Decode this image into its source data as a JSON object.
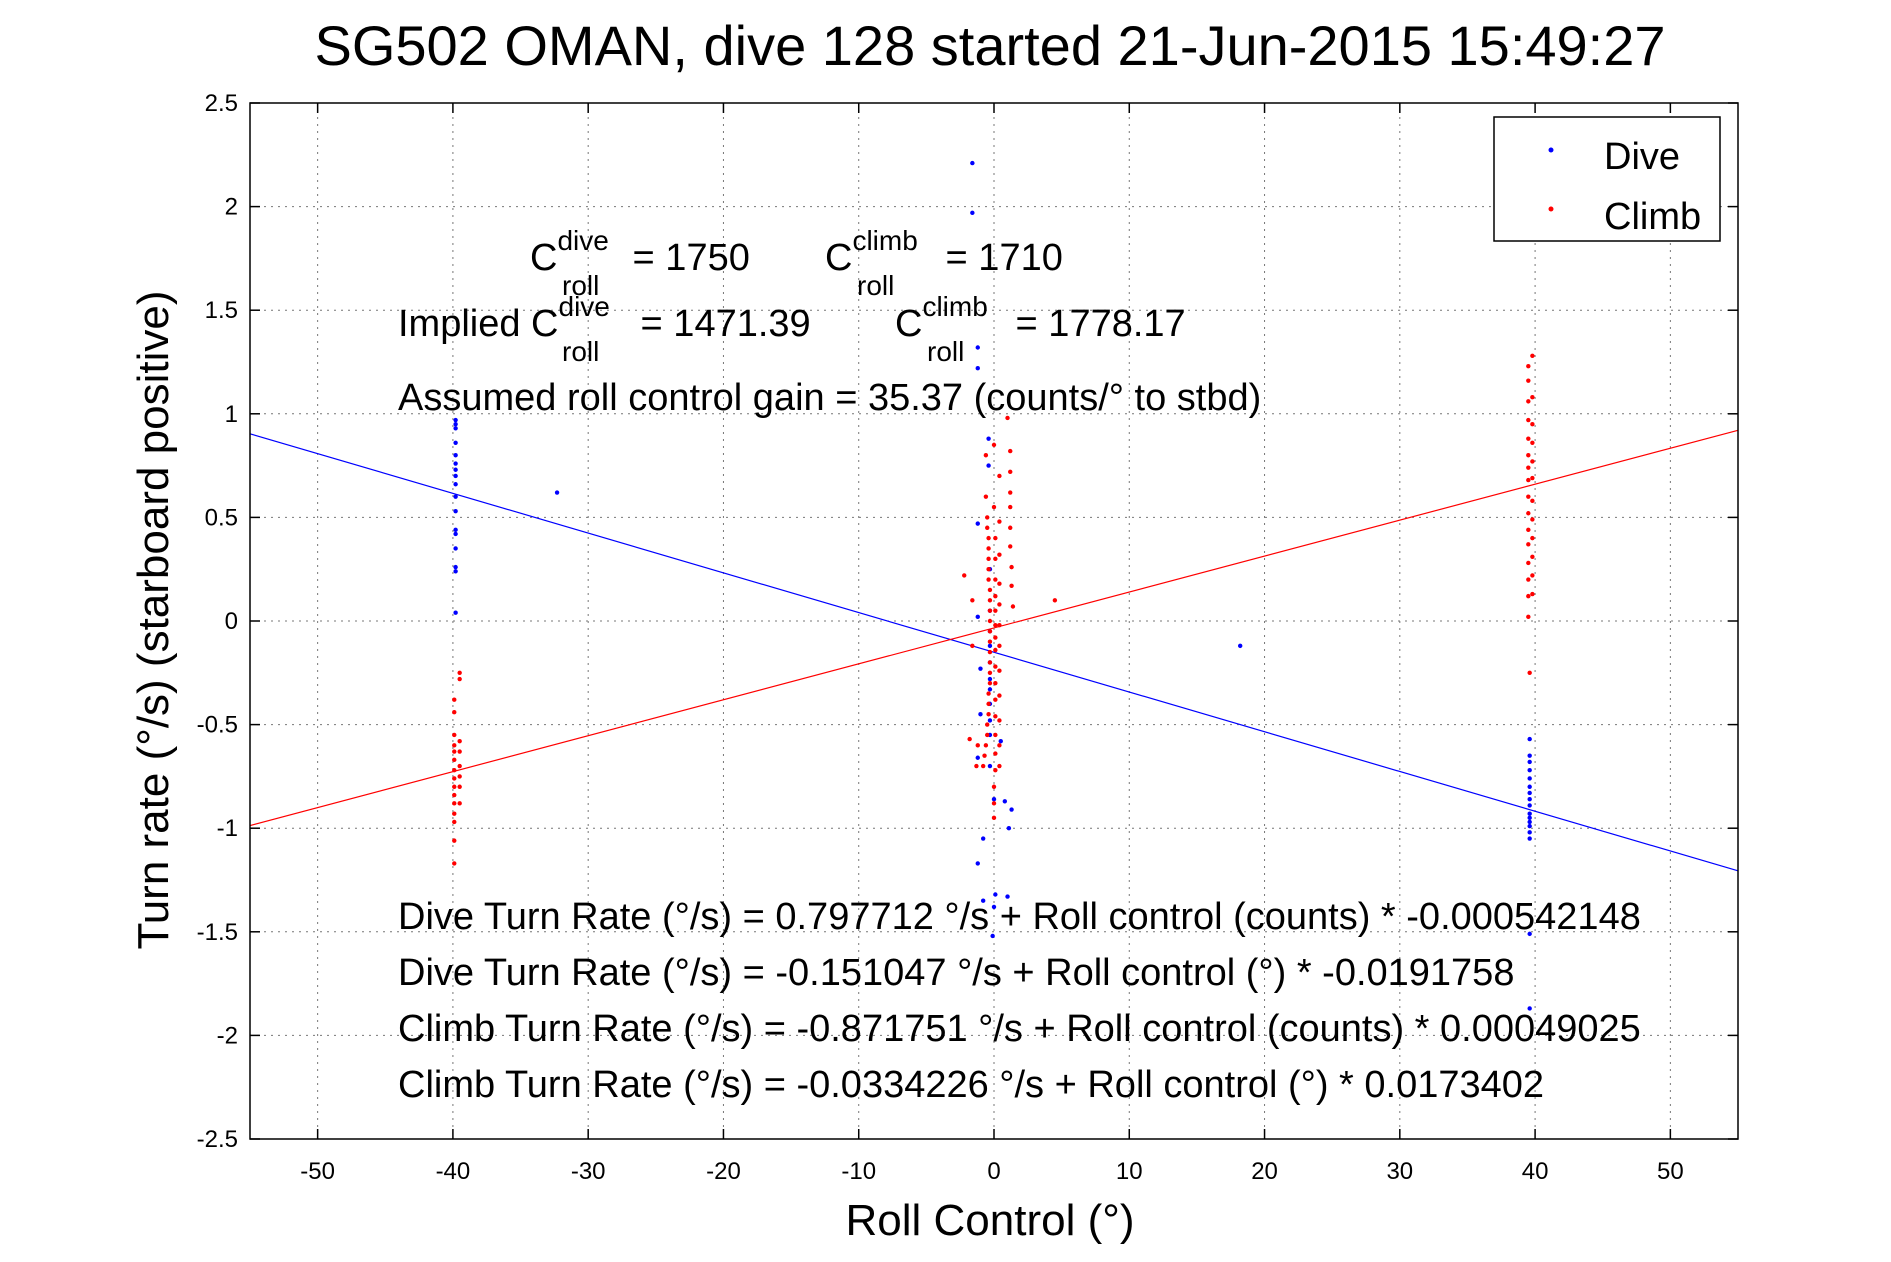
{
  "chart_data": {
    "type": "scatter",
    "title": "SG502 OMAN, dive 128 started 21-Jun-2015 15:49:27",
    "xlabel": "Roll Control (°)",
    "ylabel": "Turn rate (°/s)  (starboard positive)",
    "xlim": [
      -55,
      55
    ],
    "ylim": [
      -2.5,
      2.5
    ],
    "xticks": [
      -50,
      -40,
      -30,
      -20,
      -10,
      0,
      10,
      20,
      30,
      40,
      50
    ],
    "yticks": [
      -2.5,
      -2,
      -1.5,
      -1,
      -0.5,
      0,
      0.5,
      1,
      1.5,
      2,
      2.5
    ],
    "xtick_labels": [
      "-50",
      "-40",
      "-30",
      "-20",
      "-10",
      "0",
      "10",
      "20",
      "30",
      "40",
      "50"
    ],
    "ytick_labels": [
      "-2.5",
      "-2",
      "-1.5",
      "-1",
      "-0.5",
      "0",
      "0.5",
      "1",
      "1.5",
      "2",
      "2.5"
    ],
    "grid": true,
    "legend_position": "top-right",
    "series": [
      {
        "name": "Dive",
        "color": "#0000ff",
        "points": [
          [
            -39.8,
            0.97
          ],
          [
            -39.8,
            0.95
          ],
          [
            -39.8,
            0.93
          ],
          [
            -39.8,
            0.86
          ],
          [
            -39.8,
            0.8
          ],
          [
            -39.8,
            0.76
          ],
          [
            -39.8,
            0.73
          ],
          [
            -39.8,
            0.7
          ],
          [
            -39.8,
            0.66
          ],
          [
            -39.8,
            0.6
          ],
          [
            -39.8,
            0.53
          ],
          [
            -39.8,
            0.44
          ],
          [
            -39.8,
            0.42
          ],
          [
            -39.8,
            0.35
          ],
          [
            -39.8,
            0.26
          ],
          [
            -39.8,
            0.24
          ],
          [
            -39.8,
            0.04
          ],
          [
            -32.3,
            0.62
          ],
          [
            -1.6,
            2.21
          ],
          [
            -1.6,
            1.97
          ],
          [
            -1.2,
            1.32
          ],
          [
            -1.2,
            1.22
          ],
          [
            -1.2,
            0.47
          ],
          [
            -1.2,
            0.02
          ],
          [
            -1.0,
            -0.23
          ],
          [
            -1.0,
            -0.45
          ],
          [
            -1.2,
            -0.66
          ],
          [
            -1.2,
            -1.17
          ],
          [
            -0.8,
            -1.05
          ],
          [
            -0.8,
            -1.35
          ],
          [
            -0.4,
            0.88
          ],
          [
            -0.4,
            0.75
          ],
          [
            -0.3,
            0.25
          ],
          [
            -0.3,
            0.05
          ],
          [
            -0.3,
            -0.05
          ],
          [
            -0.3,
            -0.12
          ],
          [
            -0.3,
            -0.2
          ],
          [
            -0.3,
            -0.28
          ],
          [
            -0.3,
            -0.33
          ],
          [
            -0.3,
            -0.4
          ],
          [
            -0.3,
            -0.48
          ],
          [
            -0.3,
            -0.55
          ],
          [
            -0.3,
            -0.7
          ],
          [
            0.0,
            -0.86
          ],
          [
            0.1,
            -1.32
          ],
          [
            0.0,
            -1.38
          ],
          [
            -0.1,
            -1.52
          ],
          [
            0.5,
            -0.58
          ],
          [
            0.8,
            -0.87
          ],
          [
            1.0,
            -1.33
          ],
          [
            1.1,
            -1.0
          ],
          [
            1.3,
            -0.91
          ],
          [
            18.2,
            -0.12
          ],
          [
            39.6,
            -0.57
          ],
          [
            39.6,
            -0.65
          ],
          [
            39.6,
            -0.68
          ],
          [
            39.6,
            -0.72
          ],
          [
            39.6,
            -0.76
          ],
          [
            39.6,
            -0.8
          ],
          [
            39.6,
            -0.83
          ],
          [
            39.6,
            -0.86
          ],
          [
            39.6,
            -0.89
          ],
          [
            39.6,
            -0.93
          ],
          [
            39.6,
            -0.95
          ],
          [
            39.6,
            -0.97
          ],
          [
            39.6,
            -0.99
          ],
          [
            39.6,
            -1.02
          ],
          [
            39.6,
            -1.05
          ],
          [
            39.6,
            -1.51
          ],
          [
            39.6,
            -1.87
          ]
        ]
      },
      {
        "name": "Climb",
        "color": "#ff0000",
        "points": [
          [
            -39.9,
            -0.38
          ],
          [
            -39.9,
            -0.44
          ],
          [
            -39.9,
            -0.55
          ],
          [
            -39.9,
            -0.6
          ],
          [
            -39.9,
            -0.63
          ],
          [
            -39.9,
            -0.67
          ],
          [
            -39.9,
            -0.72
          ],
          [
            -39.9,
            -0.76
          ],
          [
            -39.9,
            -0.8
          ],
          [
            -39.9,
            -0.84
          ],
          [
            -39.9,
            -0.88
          ],
          [
            -39.9,
            -0.93
          ],
          [
            -39.9,
            -0.97
          ],
          [
            -39.9,
            -1.06
          ],
          [
            -39.9,
            -1.17
          ],
          [
            -39.5,
            -0.25
          ],
          [
            -39.5,
            -0.28
          ],
          [
            -39.5,
            -0.58
          ],
          [
            -39.5,
            -0.63
          ],
          [
            -39.5,
            -0.7
          ],
          [
            -39.5,
            -0.75
          ],
          [
            -39.5,
            -0.8
          ],
          [
            -39.5,
            -0.88
          ],
          [
            -0.6,
            0.8
          ],
          [
            -0.6,
            0.6
          ],
          [
            -0.5,
            0.5
          ],
          [
            -0.5,
            0.45
          ],
          [
            -0.4,
            0.4
          ],
          [
            -0.4,
            0.35
          ],
          [
            -0.4,
            0.3
          ],
          [
            -0.4,
            0.25
          ],
          [
            -0.4,
            0.2
          ],
          [
            -0.3,
            0.15
          ],
          [
            -0.3,
            0.1
          ],
          [
            -0.3,
            0.05
          ],
          [
            -0.3,
            0.0
          ],
          [
            -0.3,
            -0.05
          ],
          [
            -0.3,
            -0.1
          ],
          [
            -0.3,
            -0.15
          ],
          [
            -0.3,
            -0.2
          ],
          [
            -0.3,
            -0.25
          ],
          [
            -0.3,
            -0.3
          ],
          [
            -0.4,
            -0.35
          ],
          [
            -0.4,
            -0.4
          ],
          [
            -0.4,
            -0.45
          ],
          [
            -0.5,
            -0.5
          ],
          [
            -0.5,
            -0.55
          ],
          [
            -0.6,
            -0.6
          ],
          [
            -0.7,
            -0.65
          ],
          [
            -0.8,
            -0.7
          ],
          [
            0.0,
            0.85
          ],
          [
            0.0,
            0.55
          ],
          [
            0.1,
            0.4
          ],
          [
            0.1,
            0.3
          ],
          [
            0.1,
            0.2
          ],
          [
            0.1,
            0.12
          ],
          [
            0.1,
            0.05
          ],
          [
            0.1,
            -0.02
          ],
          [
            0.1,
            -0.08
          ],
          [
            0.1,
            -0.14
          ],
          [
            0.1,
            -0.22
          ],
          [
            0.1,
            -0.3
          ],
          [
            0.1,
            -0.38
          ],
          [
            0.1,
            -0.46
          ],
          [
            0.1,
            -0.55
          ],
          [
            0.1,
            -0.64
          ],
          [
            0.1,
            -0.72
          ],
          [
            0.0,
            -0.8
          ],
          [
            0.0,
            -0.88
          ],
          [
            0.0,
            -0.95
          ],
          [
            0.4,
            0.7
          ],
          [
            0.4,
            0.48
          ],
          [
            0.4,
            0.32
          ],
          [
            0.4,
            0.18
          ],
          [
            0.4,
            0.08
          ],
          [
            0.4,
            -0.02
          ],
          [
            0.4,
            -0.12
          ],
          [
            0.4,
            -0.24
          ],
          [
            0.4,
            -0.36
          ],
          [
            0.4,
            -0.48
          ],
          [
            0.4,
            -0.6
          ],
          [
            0.4,
            -0.7
          ],
          [
            -2.2,
            0.22
          ],
          [
            -1.6,
            0.1
          ],
          [
            -1.6,
            -0.12
          ],
          [
            -1.8,
            -0.57
          ],
          [
            -1.2,
            -0.6
          ],
          [
            -1.3,
            -0.7
          ],
          [
            1.0,
            0.98
          ],
          [
            1.2,
            0.82
          ],
          [
            1.2,
            0.72
          ],
          [
            1.2,
            0.62
          ],
          [
            1.2,
            0.55
          ],
          [
            1.2,
            0.45
          ],
          [
            1.2,
            0.36
          ],
          [
            1.3,
            0.26
          ],
          [
            1.3,
            0.17
          ],
          [
            1.4,
            0.07
          ],
          [
            4.5,
            0.1
          ],
          [
            39.5,
            1.23
          ],
          [
            39.5,
            1.16
          ],
          [
            39.5,
            1.06
          ],
          [
            39.5,
            0.97
          ],
          [
            39.5,
            0.88
          ],
          [
            39.5,
            0.8
          ],
          [
            39.5,
            0.74
          ],
          [
            39.5,
            0.68
          ],
          [
            39.5,
            0.6
          ],
          [
            39.5,
            0.52
          ],
          [
            39.5,
            0.44
          ],
          [
            39.5,
            0.37
          ],
          [
            39.5,
            0.28
          ],
          [
            39.5,
            0.2
          ],
          [
            39.5,
            0.12
          ],
          [
            39.5,
            0.02
          ],
          [
            39.8,
            1.28
          ],
          [
            39.8,
            1.08
          ],
          [
            39.8,
            0.95
          ],
          [
            39.8,
            0.86
          ],
          [
            39.8,
            0.77
          ],
          [
            39.8,
            0.69
          ],
          [
            39.8,
            0.58
          ],
          [
            39.8,
            0.49
          ],
          [
            39.8,
            0.4
          ],
          [
            39.8,
            0.31
          ],
          [
            39.8,
            0.22
          ],
          [
            39.8,
            0.13
          ],
          [
            39.6,
            -0.25
          ]
        ]
      }
    ],
    "fit_lines": [
      {
        "series": "Dive",
        "intercept": -0.151047,
        "slope": -0.0191758,
        "color": "#0000ff"
      },
      {
        "series": "Climb",
        "intercept": -0.0334226,
        "slope": 0.0173402,
        "color": "#ff0000"
      }
    ],
    "annotations": {
      "line1": {
        "c1_base": "C",
        "c1_sup": "dive",
        "c1_sub": "roll",
        "c1_value": " = 1750",
        "c2_base": "C",
        "c2_sup": "climb",
        "c2_sub": "roll",
        "c2_value": " = 1710"
      },
      "line2": {
        "prefix": "Implied C",
        "c1_sup": "dive",
        "c1_sub": "roll",
        "c1_value": " = 1471.39",
        "c2_base": "C",
        "c2_sup": "climb",
        "c2_sub": "roll",
        "c2_value": " = 1778.17"
      },
      "gain": "Assumed roll control gain = 35.37 (counts/° to stbd)",
      "equations": [
        "Dive Turn Rate (°/s) = 0.797712 °/s + Roll control (counts) * -0.000542148",
        "Dive Turn Rate (°/s) = -0.151047 °/s + Roll control (°) * -0.0191758",
        "Climb Turn Rate (°/s) = -0.871751 °/s + Roll control (counts) * 0.00049025",
        "Climb Turn Rate (°/s) = -0.0334226 °/s + Roll control (°) * 0.0173402"
      ]
    }
  }
}
